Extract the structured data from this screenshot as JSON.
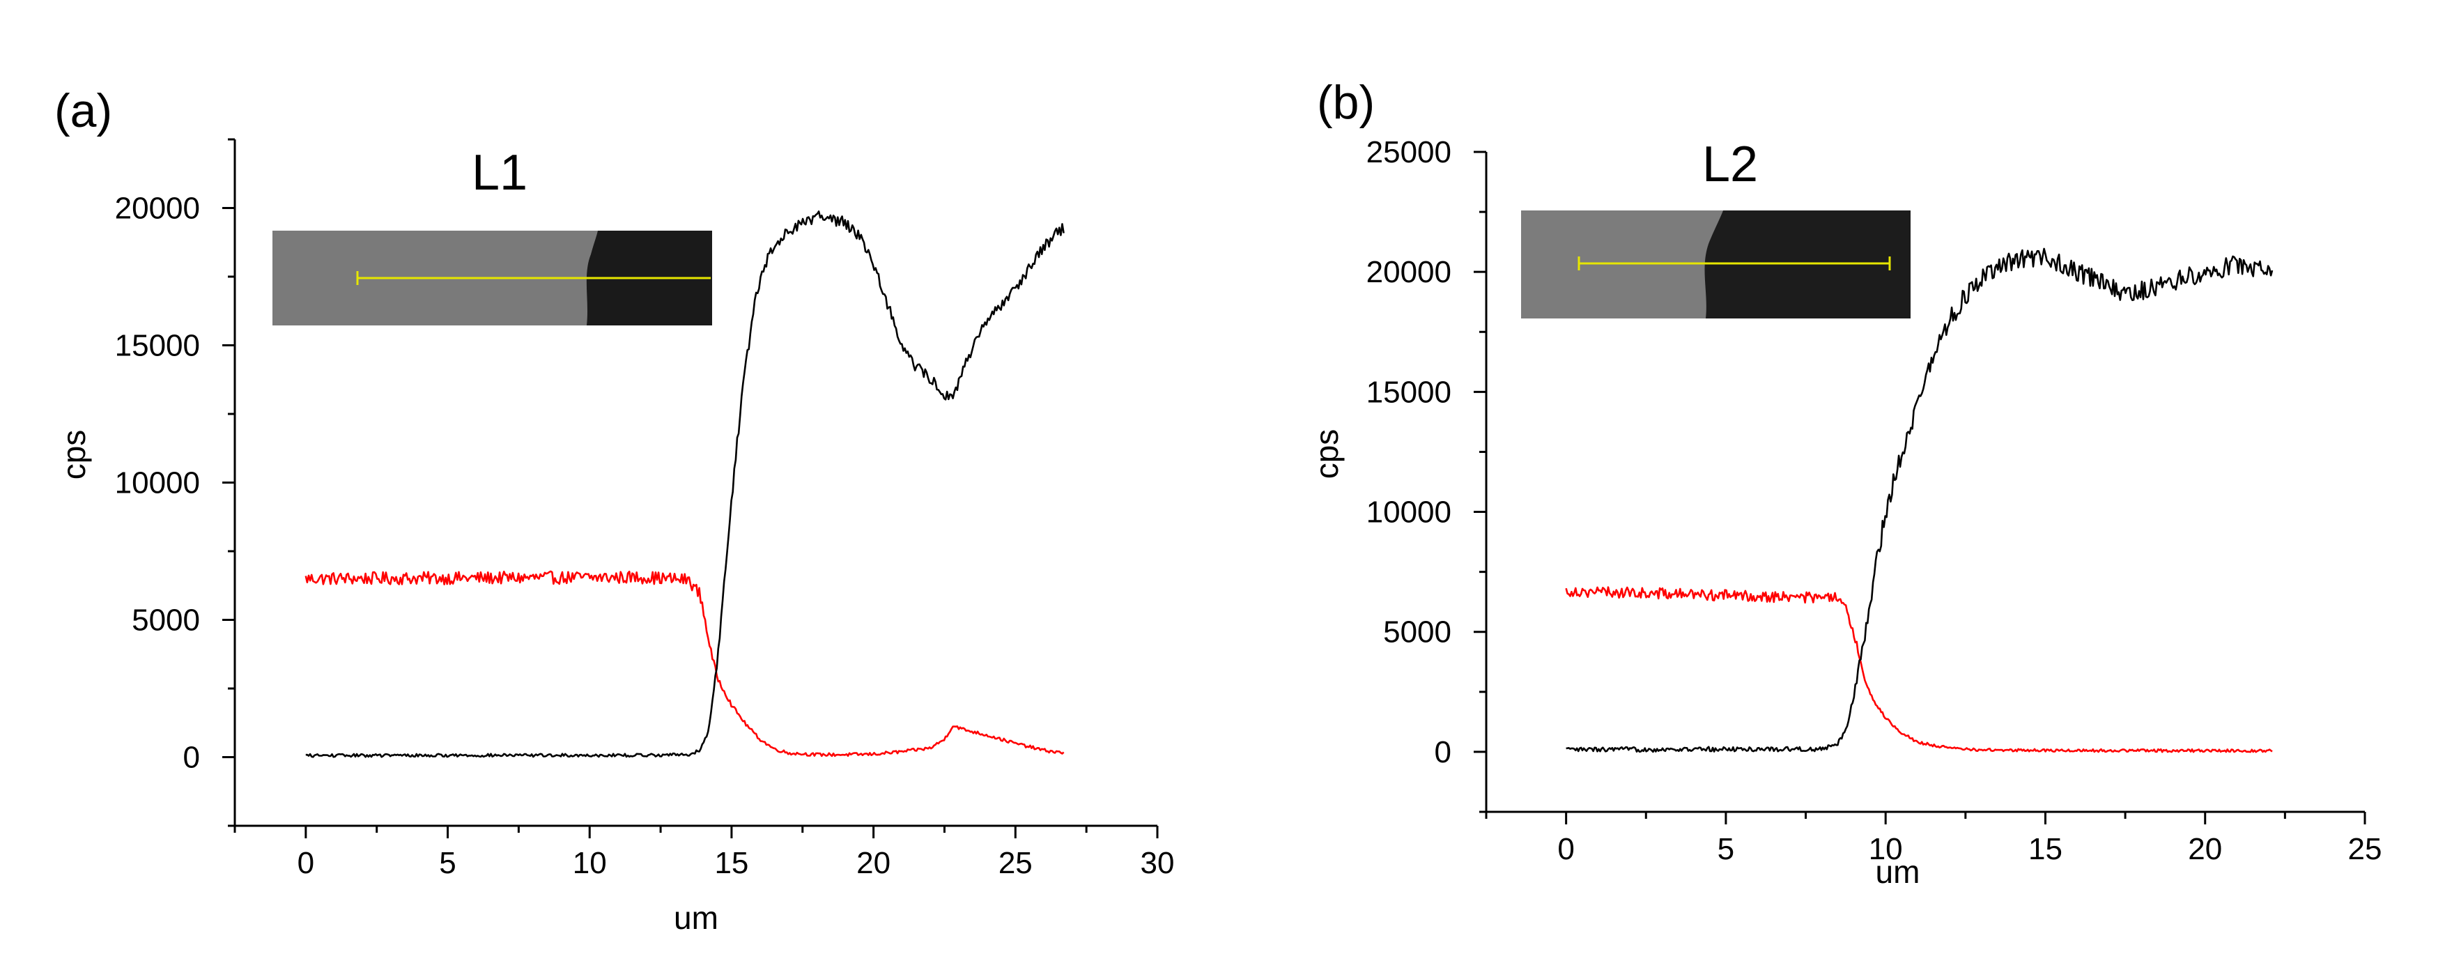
{
  "chart_data": [
    {
      "type": "line",
      "panel_label": "(a)",
      "title": "L1",
      "xlabel": "um",
      "ylabel": "cps",
      "xlim": [
        -2.5,
        30
      ],
      "ylim": [
        -2500,
        22500
      ],
      "xticks": [
        0,
        5,
        10,
        15,
        20,
        25,
        30
      ],
      "yticks": [
        0,
        5000,
        10000,
        15000,
        20000
      ],
      "x_end": 26.7,
      "series": [
        {
          "name": "red trace",
          "color": "#ff0000",
          "noise": 230,
          "points": [
            [
              0,
              6500
            ],
            [
              12,
              6550
            ],
            [
              13.5,
              6450
            ],
            [
              13.9,
              5900
            ],
            [
              14.1,
              4800
            ],
            [
              14.3,
              3700
            ],
            [
              14.5,
              2900
            ],
            [
              15,
              1900
            ],
            [
              15.5,
              1200
            ],
            [
              16,
              650
            ],
            [
              16.5,
              300
            ],
            [
              17,
              150
            ],
            [
              18,
              90
            ],
            [
              19,
              90
            ],
            [
              20,
              110
            ],
            [
              21,
              200
            ],
            [
              22,
              330
            ],
            [
              22.5,
              650
            ],
            [
              22.8,
              1150
            ],
            [
              23.2,
              1000
            ],
            [
              24,
              800
            ],
            [
              25,
              500
            ],
            [
              26,
              250
            ],
            [
              26.7,
              150
            ]
          ]
        },
        {
          "name": "black trace",
          "color": "#000000",
          "noise": 220,
          "points": [
            [
              0,
              60
            ],
            [
              12,
              70
            ],
            [
              13.5,
              100
            ],
            [
              13.9,
              250
            ],
            [
              14.2,
              1000
            ],
            [
              14.5,
              3500
            ],
            [
              14.8,
              7000
            ],
            [
              15.1,
              10500
            ],
            [
              15.4,
              13500
            ],
            [
              15.8,
              16500
            ],
            [
              16.3,
              18300
            ],
            [
              17,
              19200
            ],
            [
              18,
              19700
            ],
            [
              19,
              19500
            ],
            [
              19.5,
              19000
            ],
            [
              20,
              18000
            ],
            [
              20.5,
              16500
            ],
            [
              21,
              15000
            ],
            [
              21.5,
              14200
            ],
            [
              22,
              13800
            ],
            [
              22.5,
              13200
            ],
            [
              22.8,
              13000
            ],
            [
              23.2,
              14300
            ],
            [
              23.8,
              15500
            ],
            [
              24.5,
              16500
            ],
            [
              25.2,
              17400
            ],
            [
              26,
              18600
            ],
            [
              26.7,
              19300
            ]
          ]
        }
      ]
    },
    {
      "type": "line",
      "panel_label": "(b)",
      "title": "L2",
      "xlabel": "um",
      "ylabel": "cps",
      "xlim": [
        -2.5,
        25
      ],
      "ylim": [
        -2500,
        25000
      ],
      "xticks": [
        0,
        5,
        10,
        15,
        20,
        25
      ],
      "yticks": [
        0,
        5000,
        10000,
        15000,
        20000,
        25000
      ],
      "x_end": 22.1,
      "series": [
        {
          "name": "red trace",
          "color": "#ff0000",
          "noise": 230,
          "points": [
            [
              0,
              6700
            ],
            [
              8.5,
              6400
            ],
            [
              8.8,
              5800
            ],
            [
              9.1,
              4500
            ],
            [
              9.3,
              3200
            ],
            [
              9.6,
              2200
            ],
            [
              10,
              1400
            ],
            [
              10.5,
              800
            ],
            [
              11,
              400
            ],
            [
              12,
              150
            ],
            [
              13,
              80
            ],
            [
              15,
              60
            ],
            [
              20,
              50
            ],
            [
              22.1,
              50
            ]
          ]
        },
        {
          "name": "black trace",
          "color": "#000000",
          "noise": 400,
          "points": [
            [
              0,
              90
            ],
            [
              8,
              120
            ],
            [
              8.5,
              300
            ],
            [
              8.8,
              1100
            ],
            [
              9.1,
              3000
            ],
            [
              9.4,
              5200
            ],
            [
              9.7,
              7800
            ],
            [
              10,
              10000
            ],
            [
              10.5,
              12500
            ],
            [
              11,
              14500
            ],
            [
              11.5,
              16500
            ],
            [
              12,
              18000
            ],
            [
              12.5,
              19000
            ],
            [
              13,
              19700
            ],
            [
              14,
              20500
            ],
            [
              15,
              20600
            ],
            [
              16,
              20000
            ],
            [
              17,
              19400
            ],
            [
              17.5,
              19000
            ],
            [
              18,
              19200
            ],
            [
              19,
              19600
            ],
            [
              20,
              20000
            ],
            [
              21,
              20300
            ],
            [
              22.1,
              20100
            ]
          ]
        }
      ]
    }
  ],
  "insets": [
    {
      "name": "sem-inset-L1",
      "background": "#7a7a7a",
      "dark_region": "#1a1a1a",
      "line_color": "#e6e600"
    },
    {
      "name": "sem-inset-L2",
      "background": "#7c7c7c",
      "dark_region": "#1c1c1c",
      "line_color": "#e6e600"
    }
  ]
}
